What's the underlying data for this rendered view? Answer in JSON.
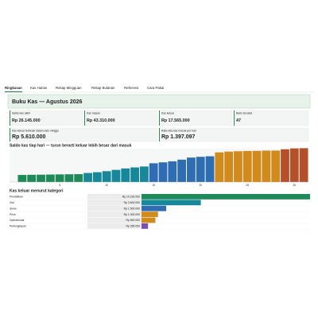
{
  "tabs": [
    "Ringkasan",
    "Kas Harian",
    "Rekap Mingguan",
    "Rekap Bulanan",
    "Referensi",
    "Cara Pakai"
  ],
  "active_tab": 0,
  "header": {
    "title": "Buku Kas — Agustus 2026"
  },
  "metrics": [
    {
      "label": "Saldo kas akhir",
      "value": "Rp 26.145.000"
    },
    {
      "label": "Kas masuk",
      "value": "Rp 43.310.000"
    },
    {
      "label": "Kas keluar",
      "value": "Rp 17.565.000"
    },
    {
      "label": "Baris tercatat",
      "value": "47"
    },
    {
      "label": "Kas keluar terbesar dalam satu minggu",
      "value": "Rp 5.610.000"
    },
    {
      "label": "Rata-rata kas masuk per hari",
      "value": "Rp 1.397.097"
    }
  ],
  "chart_data": [
    {
      "type": "bar",
      "title": "Saldo kas tiap hari — turun berarti keluar lebih besar dari masuk",
      "categories": [
        null,
        null,
        null,
        null,
        "5",
        null,
        null,
        null,
        null,
        "10",
        null,
        null,
        null,
        null,
        "15",
        null,
        null,
        null,
        null,
        "20",
        null,
        null,
        null,
        null,
        "25",
        null,
        null,
        null,
        null,
        "30",
        null
      ],
      "values": [
        5500000,
        5600000,
        5700000,
        5800000,
        5900000,
        6000000,
        6100000,
        7000000,
        7600000,
        8400000,
        9400000,
        10500000,
        11300000,
        12000000,
        14500000,
        15200000,
        16000000,
        17300000,
        18900000,
        19500000,
        19900000,
        22900000,
        23500000,
        23800000,
        24000000,
        24100000,
        24300000,
        24300000,
        25300000,
        26000000,
        26145000
      ],
      "colors": [
        "#1e8a5a",
        "#1e8a5a",
        "#1e8a5a",
        "#1e8a5a",
        "#1e8a5a",
        "#1e8a5a",
        "#1e8a5a",
        "#17879a",
        "#17879a",
        "#17879a",
        "#17879a",
        "#17879a",
        "#17879a",
        "#17879a",
        "#2f6db3",
        "#2f6db3",
        "#2f6db3",
        "#2f6db3",
        "#2f6db3",
        "#2f6db3",
        "#2f6db3",
        "#d18a1c",
        "#d18a1c",
        "#d18a1c",
        "#d18a1c",
        "#d18a1c",
        "#d18a1c",
        "#d18a1c",
        "#b5502a",
        "#b5502a",
        "#b5502a"
      ],
      "ylim": [
        0,
        27000000
      ]
    },
    {
      "type": "hbar",
      "title": "Kas keluar menurut kategori",
      "categories": [
        "Pendidikan",
        "Gizi",
        "Sewa",
        "Prive",
        "Operasional",
        "Perlengkapan"
      ],
      "values": [
        10230000,
        3600000,
        1500000,
        1000000,
        840000,
        395000
      ],
      "value_labels": [
        "Rp 10.230.000",
        "Rp 3.600.000",
        "Rp 1.500.000",
        "Rp 1.000.000",
        "Rp 840.000",
        "Rp 395.000"
      ],
      "colors": [
        "#1e8a5a",
        "#17879a",
        "#2f6db3",
        "#d18a1c",
        "#d18a1c",
        "#7a4fb0"
      ]
    }
  ]
}
